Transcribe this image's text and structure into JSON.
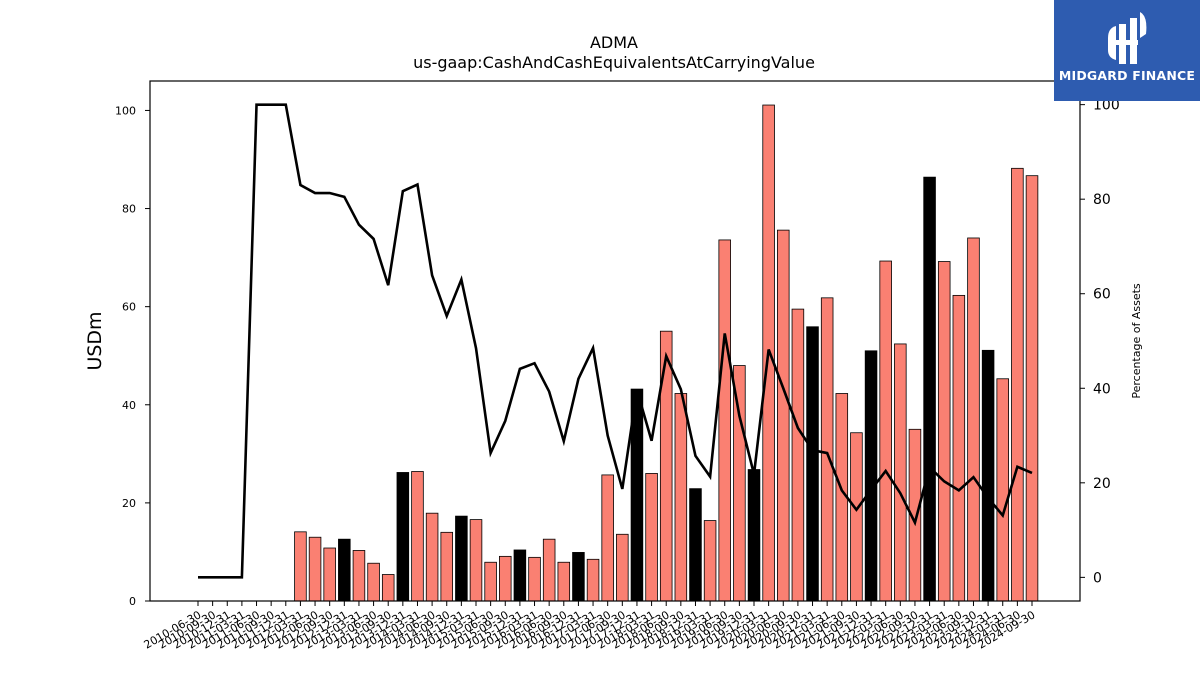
{
  "chart_data": {
    "type": "bar",
    "title": "ADMA",
    "subtitle": "us-gaap:CashAndCashEquivalentsAtCarryingValue",
    "ylabel": "USDm",
    "y2label": "Percentage of Assets",
    "ylim": [
      0,
      106
    ],
    "y2lim": [
      -5,
      105
    ],
    "yticks": [
      0,
      20,
      40,
      60,
      80,
      100
    ],
    "y2ticks": [
      0,
      20,
      40,
      60,
      80,
      100
    ],
    "colors": {
      "bar": "#fa8072",
      "highlight": "#000000",
      "line": "#000000"
    },
    "categories": [
      "2010-06-30",
      "2010-09-30",
      "2010-12-31",
      "2011-03-31",
      "2011-06-30",
      "2011-09-30",
      "2011-12-31",
      "2012-03-31",
      "2012-06-30",
      "2012-09-30",
      "2012-12-31",
      "2013-03-31",
      "2013-06-30",
      "2013-09-30",
      "2013-12-31",
      "2014-03-31",
      "2014-06-30",
      "2014-09-30",
      "2014-12-31",
      "2015-03-31",
      "2015-06-30",
      "2015-09-30",
      "2015-12-31",
      "2016-03-31",
      "2016-06-30",
      "2016-09-30",
      "2016-12-31",
      "2017-03-31",
      "2017-06-30",
      "2017-09-30",
      "2017-12-31",
      "2018-03-31",
      "2018-06-30",
      "2018-09-30",
      "2018-12-31",
      "2019-03-31",
      "2019-06-30",
      "2019-09-30",
      "2019-12-31",
      "2020-03-31",
      "2020-06-30",
      "2020-09-30",
      "2020-12-31",
      "2021-03-31",
      "2021-06-30",
      "2021-09-30",
      "2021-12-31",
      "2022-03-31",
      "2022-06-30",
      "2022-09-30",
      "2022-12-31",
      "2023-03-31",
      "2023-06-30",
      "2023-09-30",
      "2023-12-31",
      "2024-03-31",
      "2024-06-30",
      "2024-09-30"
    ],
    "series": [
      {
        "kind": "bar",
        "values": [
          null,
          null,
          null,
          null,
          null,
          null,
          null,
          14.1,
          13.0,
          10.8,
          12.6,
          10.3,
          7.7,
          5.4,
          26.2,
          26.4,
          17.9,
          14.0,
          17.3,
          16.6,
          7.9,
          9.1,
          10.4,
          8.9,
          12.6,
          7.9,
          9.9,
          8.5,
          25.7,
          13.6,
          43.2,
          26.0,
          55.0,
          42.3,
          22.9,
          16.4,
          73.6,
          48.0,
          26.8,
          101.1,
          75.6,
          59.5,
          55.9,
          61.8,
          42.3,
          34.3,
          51.0,
          69.3,
          52.4,
          35.0,
          86.4,
          69.2,
          62.3,
          74.0,
          51.1,
          45.3,
          88.2,
          86.7
        ],
        "highlight": [
          false,
          false,
          false,
          false,
          false,
          false,
          false,
          false,
          false,
          false,
          true,
          false,
          false,
          false,
          true,
          false,
          false,
          false,
          true,
          false,
          false,
          false,
          true,
          false,
          false,
          false,
          true,
          false,
          false,
          false,
          true,
          false,
          false,
          false,
          true,
          false,
          false,
          false,
          true,
          false,
          false,
          false,
          true,
          false,
          false,
          false,
          true,
          false,
          false,
          false,
          true,
          false,
          false,
          false,
          true,
          false,
          false,
          false
        ]
      },
      {
        "kind": "line",
        "axis": "right",
        "values": [
          0,
          0,
          0,
          0,
          100,
          100,
          100,
          83,
          81.3,
          81.3,
          80.5,
          74.6,
          71.6,
          61.8,
          81.7,
          83.1,
          63.9,
          55.3,
          63,
          48.5,
          26.3,
          33.1,
          44.1,
          45.3,
          39.3,
          28.8,
          42,
          48.5,
          30,
          18.7,
          39.6,
          28.9,
          46.8,
          39.8,
          25.7,
          21.3,
          51.6,
          34.2,
          21.8,
          48.2,
          40,
          31.6,
          26.9,
          26.3,
          18.4,
          14.3,
          18.5,
          22.5,
          17.8,
          11.6,
          23.3,
          20.3,
          18.4,
          21.2,
          16.8,
          13.1,
          23.4,
          22.1
        ]
      }
    ],
    "xticklabels": [
      "2010-06-30",
      "2010-09-30",
      "2010-12-31",
      "2011-03-31",
      "2011-06-30",
      "2011-09-30",
      "2011-12-31",
      "2012-03-31",
      "2012-06-30",
      "2012-09-30",
      "2012-12-31",
      "2013-03-31",
      "2013-06-30",
      "2013-09-30",
      "2013-12-31",
      "2014-03-31",
      "2014-06-30",
      "2014-09-30",
      "2014-12-31",
      "2015-03-31",
      "2015-06-30",
      "2015-09-30",
      "2015-12-31",
      "2016-03-31",
      "2016-06-30",
      "2016-09-30",
      "2016-12-31",
      "2017-03-31",
      "2017-06-30",
      "2017-09-30",
      "2017-12-31",
      "2018-03-31",
      "2018-06-30",
      "2018-09-30",
      "2018-12-31",
      "2019-03-31",
      "2019-06-30",
      "2019-09-30",
      "2019-12-31",
      "2020-03-31",
      "2020-06-30",
      "2020-09-30",
      "2020-12-31",
      "2021-03-31",
      "2021-06-30",
      "2021-09-30",
      "2021-12-31",
      "2022-03-31",
      "2022-06-30",
      "2022-09-30",
      "2022-12-31",
      "2023-03-31",
      "2023-06-30",
      "2023-09-30",
      "2023-12-31",
      "2024-03-31",
      "2024-06-30",
      "2024-09-30"
    ],
    "grid": false,
    "legend": "none"
  },
  "logo": {
    "text": "MIDGARD FINANCE"
  }
}
